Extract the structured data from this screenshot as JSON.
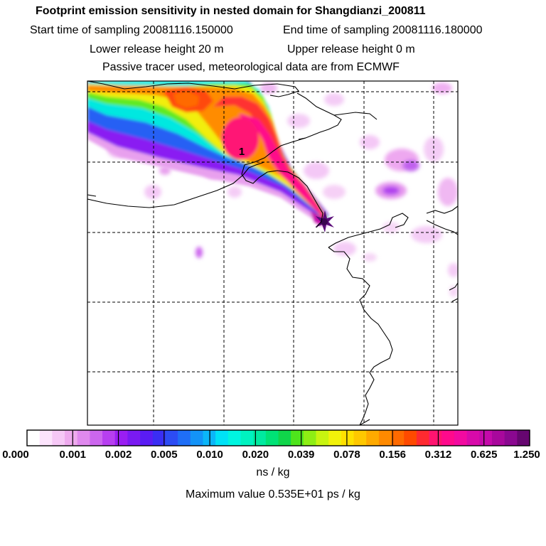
{
  "header": {
    "title": "Footprint emission sensitivity in nested domain for Shangdianzi_200811",
    "start_sampling": "Start time of sampling 20081116.150000",
    "end_sampling": "End time of sampling 20081116.180000",
    "lower_release": "Lower release height   20 m",
    "upper_release": "Upper release height    0 m",
    "tracer_info": "Passive tracer used, meteorological data are from ECMWF"
  },
  "map": {
    "plume_label": "1"
  },
  "colorbar": {
    "colors": [
      "#ffffff",
      "#fce4fc",
      "#f6c8f6",
      "#eeaaee",
      "#e089ee",
      "#cc66ee",
      "#b73ff0",
      "#9a1ef2",
      "#7a1af2",
      "#5a1cf4",
      "#3a2ef4",
      "#2c4cf4",
      "#1f6ef6",
      "#1393f7",
      "#0bb6f8",
      "#00e2f6",
      "#00f5e0",
      "#00f2c0",
      "#00eaa0",
      "#00e276",
      "#10d54a",
      "#4ee41c",
      "#8eee14",
      "#c8f410",
      "#f2f20a",
      "#ffe100",
      "#ffc800",
      "#ffaa00",
      "#ff8a00",
      "#ff6a00",
      "#ff4a00",
      "#ff2a30",
      "#ff1470",
      "#ff0a8c",
      "#f20aa0",
      "#d80aaa",
      "#c40aaa",
      "#a8089c",
      "#8a0890",
      "#660670"
    ],
    "tick_labels": [
      "0.000",
      "0.001",
      "0.002",
      "0.005",
      "0.010",
      "0.020",
      "0.039",
      "0.078",
      "0.156",
      "0.312",
      "0.625",
      "1.250"
    ],
    "unit": "ns / kg"
  },
  "maximum_value": "Maximum value  0.535E+01 ps / kg"
}
